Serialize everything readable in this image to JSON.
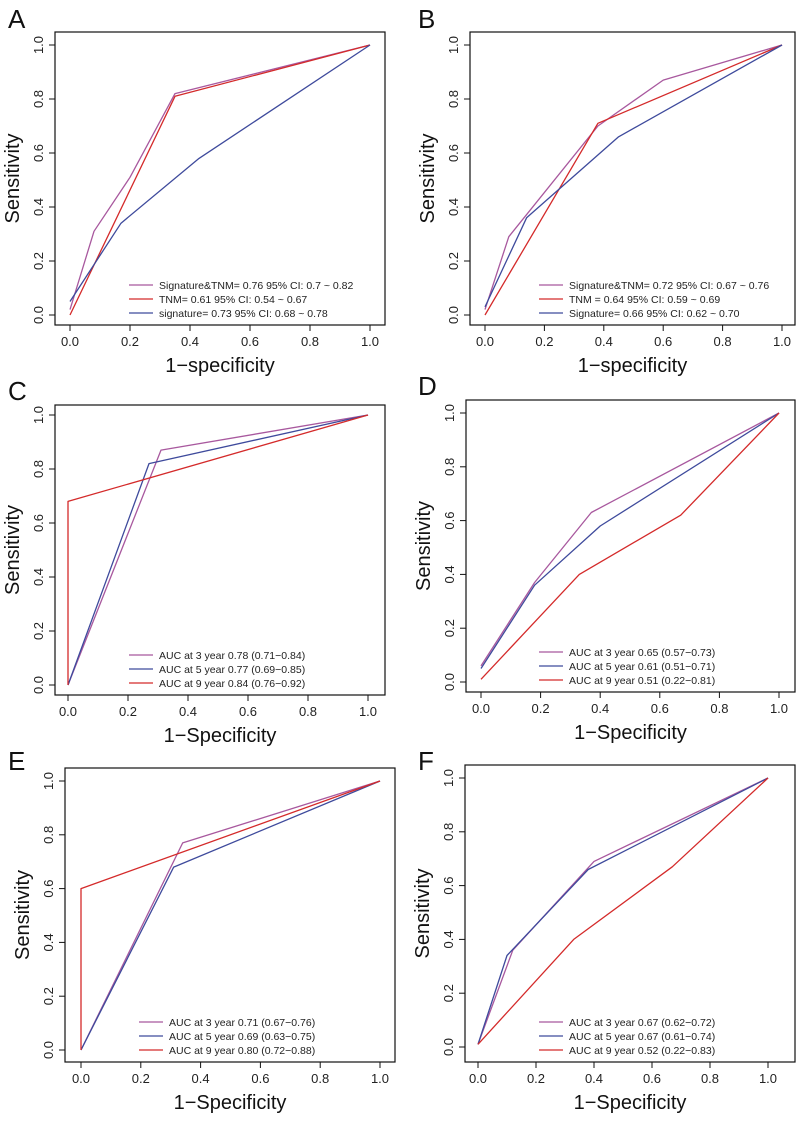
{
  "chart_data": [
    {
      "panel": "A",
      "type": "line",
      "xlabel": "1−specificity",
      "ylabel": "Sensitivity",
      "xlim": [
        0,
        1
      ],
      "ylim": [
        0,
        1
      ],
      "xticks": [
        "0.0",
        "0.2",
        "0.4",
        "0.6",
        "0.8",
        "1.0"
      ],
      "yticks": [
        "0.0",
        "0.2",
        "0.4",
        "0.6",
        "0.8",
        "1.0"
      ],
      "legend_position": "bottom-right",
      "series": [
        {
          "name": "Signature&TNM= 0.76  95% CI: 0.7 ~ 0.82",
          "color": "#a8589e",
          "points": [
            [
              0,
              0.02
            ],
            [
              0.08,
              0.31
            ],
            [
              0.2,
              0.51
            ],
            [
              0.35,
              0.82
            ],
            [
              1,
              1
            ]
          ]
        },
        {
          "name": "TNM= 0.61  95% CI: 0.54 ~ 0.67",
          "color": "#d42a2a",
          "points": [
            [
              0,
              0
            ],
            [
              0.35,
              0.81
            ],
            [
              1,
              1
            ]
          ]
        },
        {
          "name": "signature= 0.73  95% CI: 0.68 ~ 0.78",
          "color": "#3e4a9c",
          "points": [
            [
              0,
              0.05
            ],
            [
              0.17,
              0.34
            ],
            [
              0.43,
              0.58
            ],
            [
              1,
              1
            ]
          ]
        }
      ]
    },
    {
      "panel": "B",
      "type": "line",
      "xlabel": "1−specificity",
      "ylabel": "Sensitivity",
      "xlim": [
        0,
        1
      ],
      "ylim": [
        0,
        1
      ],
      "xticks": [
        "0.0",
        "0.2",
        "0.4",
        "0.6",
        "0.8",
        "1.0"
      ],
      "yticks": [
        "0.0",
        "0.2",
        "0.4",
        "0.6",
        "0.8",
        "1.0"
      ],
      "legend_position": "bottom-right",
      "series": [
        {
          "name": "Signature&TNM= 0.72  95% CI: 0.67 ~ 0.76",
          "color": "#a8589e",
          "points": [
            [
              0,
              0.02
            ],
            [
              0.08,
              0.29
            ],
            [
              0.38,
              0.7
            ],
            [
              0.6,
              0.87
            ],
            [
              1,
              1
            ]
          ]
        },
        {
          "name": "TNM = 0.64  95% CI: 0.59 ~ 0.69",
          "color": "#d42a2a",
          "points": [
            [
              0,
              0
            ],
            [
              0.38,
              0.71
            ],
            [
              1,
              1
            ]
          ]
        },
        {
          "name": "Signature= 0.66  95% CI: 0.62 ~ 0.70",
          "color": "#3e4a9c",
          "points": [
            [
              0,
              0.03
            ],
            [
              0.14,
              0.36
            ],
            [
              0.45,
              0.66
            ],
            [
              1,
              1
            ]
          ]
        }
      ]
    },
    {
      "panel": "C",
      "type": "line",
      "xlabel": "1−Specificity",
      "ylabel": "Sensitivity",
      "xlim": [
        0,
        1
      ],
      "ylim": [
        0,
        1
      ],
      "xticks": [
        "0.0",
        "0.2",
        "0.4",
        "0.6",
        "0.8",
        "1.0"
      ],
      "yticks": [
        "0.0",
        "0.2",
        "0.4",
        "0.6",
        "0.8",
        "1.0"
      ],
      "legend_position": "bottom-right",
      "series": [
        {
          "name": "AUC at 3 year 0.78 (0.71−0.84)",
          "color": "#a8589e",
          "points": [
            [
              0,
              0
            ],
            [
              0.31,
              0.87
            ],
            [
              1,
              1
            ]
          ]
        },
        {
          "name": "AUC at 5 year 0.77 (0.69−0.85)",
          "color": "#3e4a9c",
          "points": [
            [
              0,
              0
            ],
            [
              0.27,
              0.82
            ],
            [
              1,
              1
            ]
          ]
        },
        {
          "name": "AUC at 9 year 0.84 (0.76−0.92)",
          "color": "#d42a2a",
          "points": [
            [
              0,
              0
            ],
            [
              0,
              0.68
            ],
            [
              1,
              1
            ]
          ]
        }
      ]
    },
    {
      "panel": "D",
      "type": "line",
      "xlabel": "1−Specificity",
      "ylabel": "Sensitivity",
      "xlim": [
        0,
        1
      ],
      "ylim": [
        0,
        1
      ],
      "xticks": [
        "0.0",
        "0.2",
        "0.4",
        "0.6",
        "0.8",
        "1.0"
      ],
      "yticks": [
        "0.0",
        "0.2",
        "0.4",
        "0.6",
        "0.8",
        "1.0"
      ],
      "legend_position": "bottom-right",
      "series": [
        {
          "name": "AUC at 3 year 0.65 (0.57−0.73)",
          "color": "#a8589e",
          "points": [
            [
              0,
              0.06
            ],
            [
              0.18,
              0.37
            ],
            [
              0.37,
              0.63
            ],
            [
              1,
              1
            ]
          ]
        },
        {
          "name": "AUC at 5 year 0.61 (0.51−0.71)",
          "color": "#3e4a9c",
          "points": [
            [
              0,
              0.05
            ],
            [
              0.18,
              0.36
            ],
            [
              0.4,
              0.58
            ],
            [
              1,
              1
            ]
          ]
        },
        {
          "name": "AUC at 9 year 0.51 (0.22−0.81)",
          "color": "#d42a2a",
          "points": [
            [
              0,
              0.01
            ],
            [
              0.33,
              0.4
            ],
            [
              0.67,
              0.62
            ],
            [
              1,
              1
            ]
          ]
        }
      ]
    },
    {
      "panel": "E",
      "type": "line",
      "xlabel": "1−Specificity",
      "ylabel": "Sensitivity",
      "xlim": [
        0,
        1
      ],
      "ylim": [
        0,
        1
      ],
      "xticks": [
        "0.0",
        "0.2",
        "0.4",
        "0.6",
        "0.8",
        "1.0"
      ],
      "yticks": [
        "0.0",
        "0.2",
        "0.4",
        "0.6",
        "0.8",
        "1.0"
      ],
      "legend_position": "bottom-right",
      "series": [
        {
          "name": "AUC at 3 year 0.71 (0.67−0.76)",
          "color": "#a8589e",
          "points": [
            [
              0,
              0
            ],
            [
              0.34,
              0.77
            ],
            [
              1,
              1
            ]
          ]
        },
        {
          "name": "AUC at 5 year 0.69 (0.63−0.75)",
          "color": "#3e4a9c",
          "points": [
            [
              0,
              0
            ],
            [
              0.31,
              0.68
            ],
            [
              1,
              1
            ]
          ]
        },
        {
          "name": "AUC at 9 year 0.80 (0.72−0.88)",
          "color": "#d42a2a",
          "points": [
            [
              0,
              0
            ],
            [
              0,
              0.6
            ],
            [
              1,
              1
            ]
          ]
        }
      ]
    },
    {
      "panel": "F",
      "type": "line",
      "xlabel": "1−Specificity",
      "ylabel": "Sensitivity",
      "xlim": [
        0,
        1
      ],
      "ylim": [
        0,
        1
      ],
      "xticks": [
        "0.0",
        "0.2",
        "0.4",
        "0.6",
        "0.8",
        "1.0"
      ],
      "yticks": [
        "0.0",
        "0.2",
        "0.4",
        "0.6",
        "0.8",
        "1.0"
      ],
      "legend_position": "bottom-right",
      "series": [
        {
          "name": "AUC at 3 year 0.67 (0.62−0.72)",
          "color": "#a8589e",
          "points": [
            [
              0,
              0.01
            ],
            [
              0.12,
              0.36
            ],
            [
              0.4,
              0.69
            ],
            [
              1,
              1
            ]
          ]
        },
        {
          "name": "AUC at 5 year 0.67 (0.61−0.74)",
          "color": "#3e4a9c",
          "points": [
            [
              0,
              0.01
            ],
            [
              0.1,
              0.34
            ],
            [
              0.38,
              0.66
            ],
            [
              1,
              1
            ]
          ]
        },
        {
          "name": "AUC at 9 year 0.52 (0.22−0.83)",
          "color": "#d42a2a",
          "points": [
            [
              0,
              0.01
            ],
            [
              0.33,
              0.4
            ],
            [
              0.67,
              0.67
            ],
            [
              1,
              1
            ]
          ]
        }
      ]
    }
  ]
}
